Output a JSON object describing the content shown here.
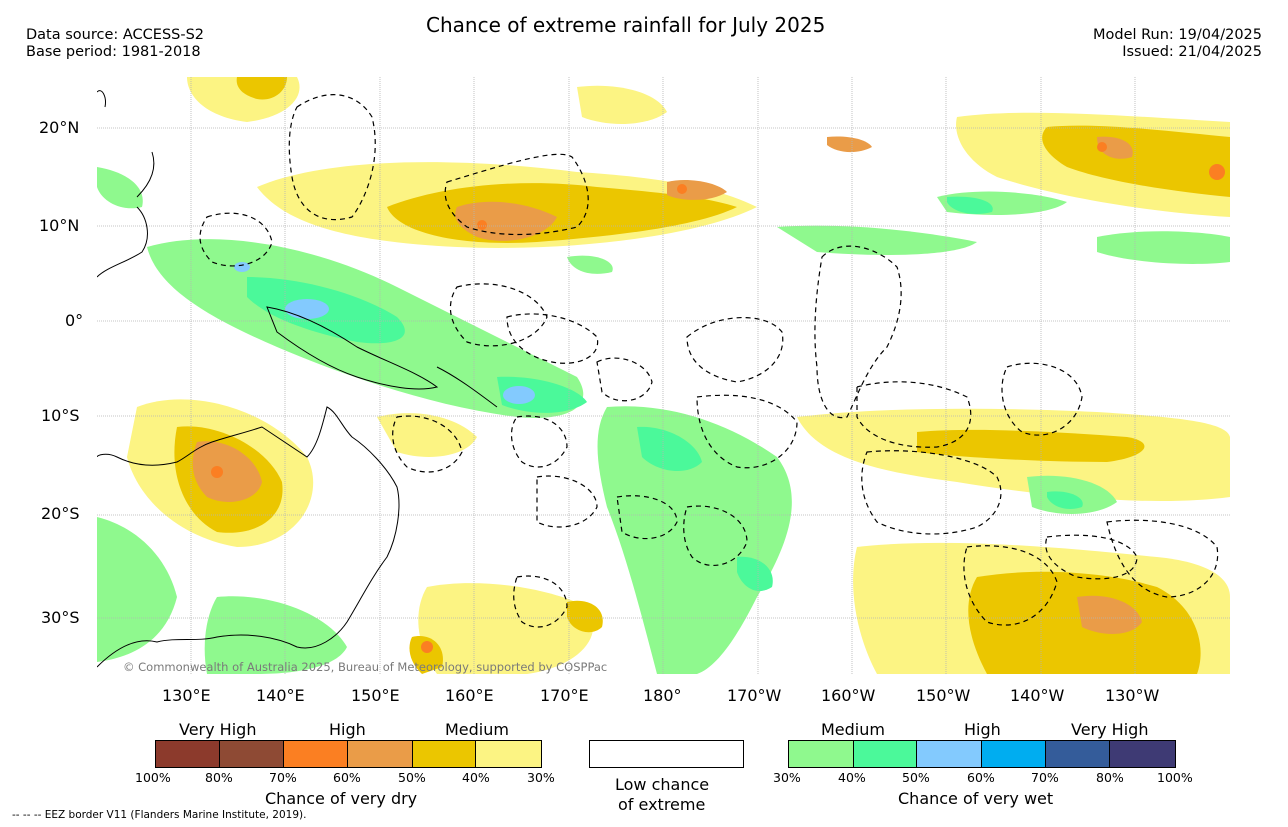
{
  "header": {
    "title": "Chance of extreme rainfall for July 2025",
    "source_line": "Data source: ACCESS-S2",
    "base_period": "Base period: 1981-2018",
    "model_run": "Model Run: 19/04/2025",
    "issued": "Issued: 21/04/2025"
  },
  "map": {
    "copyright": "© Commonwealth of Australia 2025, Bureau of Meteorology, supported by COSPPac",
    "lat_labels": [
      "20°N",
      "10°N",
      "0°",
      "10°S",
      "20°S",
      "30°S"
    ],
    "lon_labels": [
      "130°E",
      "140°E",
      "150°E",
      "160°E",
      "170°E",
      "180°",
      "170°W",
      "160°W",
      "150°W",
      "140°W",
      "130°W"
    ]
  },
  "legend": {
    "dry": {
      "categories": [
        "Very High",
        "High",
        "Medium"
      ],
      "ticks": [
        "100%",
        "80%",
        "70%",
        "60%",
        "50%",
        "40%",
        "30%"
      ],
      "colors": [
        "#8c3a2c",
        "#8e4a34",
        "#fb7f22",
        "#ea9c48",
        "#ebc600",
        "#fcf483"
      ],
      "title": "Chance of very dry"
    },
    "low": {
      "line1": "Low chance",
      "line2": "of extreme",
      "color": "#ffffff"
    },
    "wet": {
      "categories": [
        "Medium",
        "High",
        "Very High"
      ],
      "ticks": [
        "30%",
        "40%",
        "50%",
        "60%",
        "70%",
        "80%",
        "100%"
      ],
      "colors": [
        "#8ff98e",
        "#4bf99a",
        "#83cafe",
        "#00adf0",
        "#345c9a",
        "#3e3a74"
      ],
      "title": "Chance of very wet"
    }
  },
  "footer": {
    "eez_note": "--  --  -- EEZ border V11 (Flanders Marine Institute, 2019)."
  }
}
